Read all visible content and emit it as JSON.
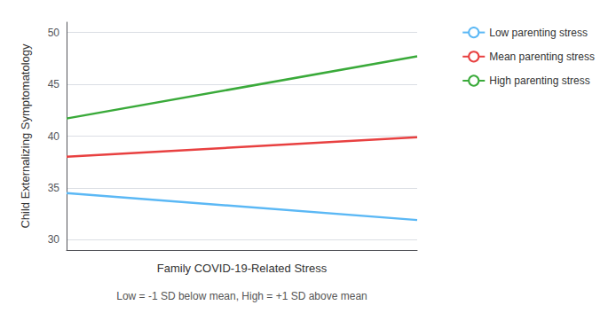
{
  "chart_data": {
    "type": "line",
    "x": [
      0,
      1
    ],
    "series": [
      {
        "name": "Low parenting stress",
        "color": "#5bb8f5",
        "values": [
          34.5,
          31.9
        ]
      },
      {
        "name": "Mean parenting stress",
        "color": "#e84040",
        "values": [
          38.0,
          39.9
        ]
      },
      {
        "name": "High parenting stress",
        "color": "#3aaa3a",
        "values": [
          41.7,
          47.7
        ]
      }
    ],
    "xlim": [
      0,
      1
    ],
    "ylim": [
      29,
      51
    ],
    "yticks": [
      30,
      35,
      40,
      45,
      50
    ],
    "ylabel": "Child Externalizing Symptomatology",
    "xlabel": "Family COVID-19-Related Stress",
    "annotations": [
      "Low = -1 SD below mean, High = +1 SD above mean"
    ],
    "grid": true,
    "legend": "right",
    "tick_labels": "y"
  }
}
